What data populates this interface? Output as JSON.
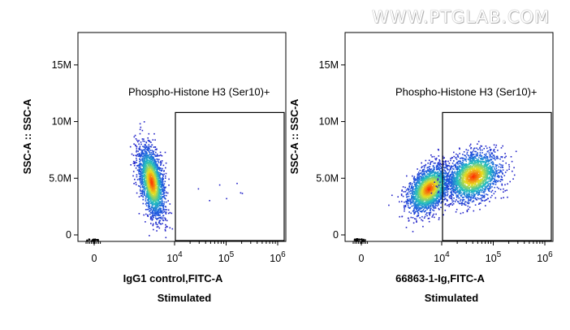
{
  "watermark": "WWW.PTGLAB.COM",
  "colors": {
    "axis": "#000000",
    "density_low": "#2020c8",
    "density_mid": "#20c0c0",
    "density_high_a": "#e8e020",
    "density_high_b": "#ff2000"
  },
  "chart_data": [
    {
      "type": "scatter",
      "subtype": "flow-cytometry density dot plot",
      "title": "",
      "xlabel": "IgG1 control,FITC-A",
      "caption": "Stimulated",
      "ylabel": "SSC-A :: SSC-A",
      "x_scale": "biexponential (logicle)",
      "y_scale": "linear",
      "x_ticks": [
        "0",
        "10^4",
        "10^5",
        "10^6"
      ],
      "y_ticks": [
        "0",
        "5.0M",
        "10M",
        "15M"
      ],
      "ylim": [
        0,
        17500000
      ],
      "gate": {
        "label": "Phospho-Histone H3 (Ser10)+",
        "x_range": [
          10000,
          1000000
        ],
        "y_range": [
          0,
          10800000
        ]
      },
      "populations": [
        {
          "name": "negative",
          "x_center": 2000,
          "y_center": 4700000,
          "relative_size": 1.0
        }
      ]
    },
    {
      "type": "scatter",
      "subtype": "flow-cytometry density dot plot",
      "title": "",
      "xlabel": "66863-1-Ig,FITC-A",
      "caption": "Stimulated",
      "ylabel": "SSC-A :: SSC-A",
      "x_scale": "biexponential (logicle)",
      "y_scale": "linear",
      "x_ticks": [
        "0",
        "10^4",
        "10^5",
        "10^6"
      ],
      "y_ticks": [
        "0",
        "5.0M",
        "10M",
        "15M"
      ],
      "ylim": [
        0,
        17500000
      ],
      "gate": {
        "label": "Phospho-Histone H3 (Ser10)+",
        "x_range": [
          10000,
          1000000
        ],
        "y_range": [
          0,
          10800000
        ]
      },
      "populations": [
        {
          "name": "negative",
          "x_center": 4000,
          "y_center": 4100000,
          "relative_size": 1.0
        },
        {
          "name": "positive",
          "x_center": 40000,
          "y_center": 5200000,
          "relative_size": 0.95
        }
      ]
    }
  ]
}
